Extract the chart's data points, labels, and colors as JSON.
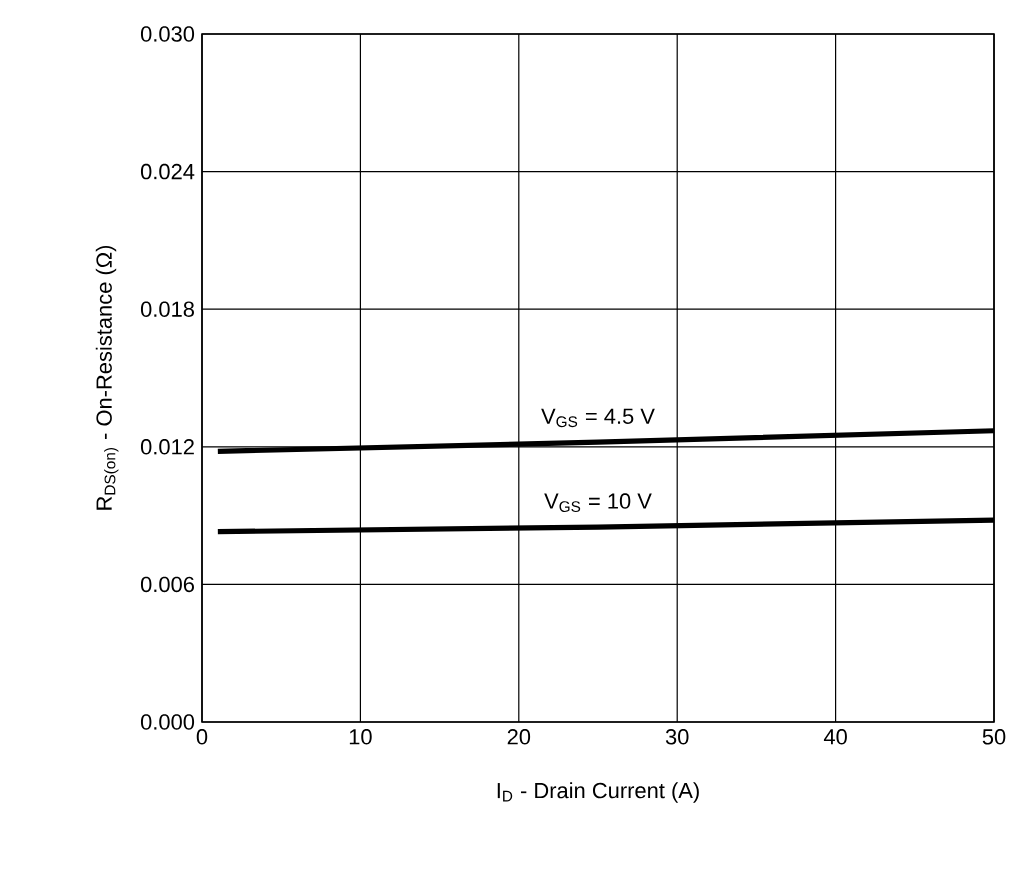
{
  "chart_data": {
    "type": "line",
    "xlabel": "I$_{D}$ - Drain Current (A)",
    "ylabel": "R$_{DS(on)}$ - On-Resistance (Ω)",
    "xlim": [
      0,
      50
    ],
    "xticks": [
      0,
      10,
      20,
      30,
      40,
      50
    ],
    "ylim": [
      0,
      0.03
    ],
    "yticks": [
      {
        "value": 0,
        "label": "0.000"
      },
      {
        "value": 0.006,
        "label": "0.006"
      },
      {
        "value": 0.012,
        "label": "0.012"
      },
      {
        "value": 0.018,
        "label": "0.018"
      },
      {
        "value": 0.024,
        "label": "0.024"
      },
      {
        "value": 0.03,
        "label": "0.030"
      }
    ],
    "grid": true,
    "marker": "none",
    "line_style": "solid",
    "series": [
      {
        "name": "V$_{GS}$ = 4.5 V",
        "color": "#000000",
        "x": [
          1,
          25,
          50
        ],
        "values": [
          0.0118,
          0.0122,
          0.0127
        ]
      },
      {
        "name": "V$_{GS}$ = 10 V",
        "color": "#000000",
        "x": [
          1,
          25,
          50
        ],
        "values": [
          0.0083,
          0.0085,
          0.0088
        ]
      }
    ]
  }
}
